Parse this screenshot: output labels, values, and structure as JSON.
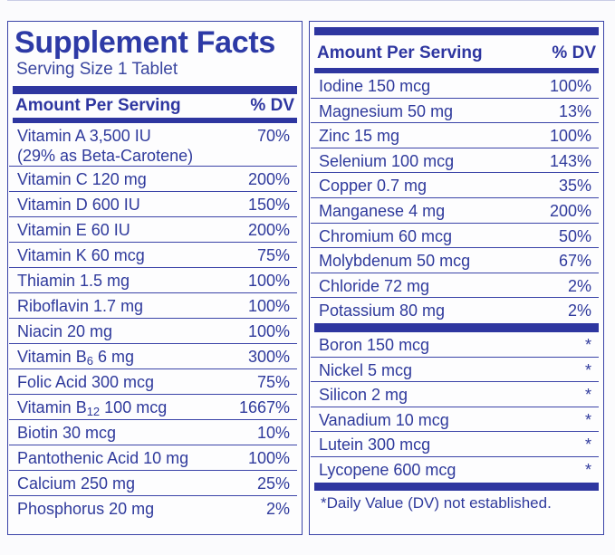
{
  "title": "Supplement Facts",
  "serving_size": "Serving Size 1 Tablet",
  "left_header": {
    "amount": "Amount Per Serving",
    "dv": "% DV"
  },
  "left_rows": [
    {
      "name": "Vitamin A 3,500 IU\n (29% as Beta-Carotene)",
      "dv": "70%"
    },
    {
      "name": "Vitamin C 120 mg",
      "dv": "200%"
    },
    {
      "name": "Vitamin D 600 IU",
      "dv": "150%"
    },
    {
      "name": "Vitamin E  60 IU",
      "dv": "200%"
    },
    {
      "name": "Vitamin K 60 mcg",
      "dv": "75%"
    },
    {
      "name": "Thiamin 1.5 mg",
      "dv": "100%"
    },
    {
      "name": "Riboflavin 1.7 mg",
      "dv": "100%"
    },
    {
      "name": "Niacin 20 mg",
      "dv": "100%"
    },
    {
      "name_pre": "Vitamin B",
      "name_sub": "6",
      "name_post": " 6 mg",
      "dv": "300%"
    },
    {
      "name": "Folic Acid 300 mcg",
      "dv": "75%"
    },
    {
      "name_pre": "Vitamin B",
      "name_sub": "12",
      "name_post": " 100 mcg",
      "dv": "1667%"
    },
    {
      "name": "Biotin 30 mcg",
      "dv": "10%"
    },
    {
      "name": "Pantothenic Acid 10 mg",
      "dv": "100%"
    },
    {
      "name": "Calcium 250 mg",
      "dv": "25%"
    },
    {
      "name": "Phosphorus 20 mg",
      "dv": "2%"
    }
  ],
  "right_header": {
    "amount": "Amount Per Serving",
    "dv": "% DV"
  },
  "right_rows": [
    {
      "name": "Iodine 150 mcg",
      "dv": "100%"
    },
    {
      "name": "Magnesium 50 mg",
      "dv": "13%"
    },
    {
      "name": "Zinc 15 mg",
      "dv": "100%"
    },
    {
      "name": "Selenium 100 mcg",
      "dv": "143%"
    },
    {
      "name": "Copper 0.7 mg",
      "dv": "35%"
    },
    {
      "name": "Manganese 4 mg",
      "dv": "200%"
    },
    {
      "name": "Chromium 60 mcg",
      "dv": "50%"
    },
    {
      "name": "Molybdenum 50 mcg",
      "dv": "67%"
    },
    {
      "name": "Chloride 72 mg",
      "dv": "2%"
    },
    {
      "name": "Potassium 80 mg",
      "dv": "2%"
    }
  ],
  "right_rows_nodv": [
    {
      "name": "Boron 150 mcg",
      "dv": "*"
    },
    {
      "name": "Nickel 5 mcg",
      "dv": "*"
    },
    {
      "name": "Silicon 2 mg",
      "dv": "*"
    },
    {
      "name": "Vanadium 10 mcg",
      "dv": "*"
    },
    {
      "name": "Lutein 300 mcg",
      "dv": "*"
    },
    {
      "name": "Lycopene 600 mcg",
      "dv": "*"
    }
  ],
  "footnote": "*Daily Value (DV) not established.",
  "colors": {
    "label_blue": "#2e36a0",
    "background": "#fdfdfe"
  }
}
